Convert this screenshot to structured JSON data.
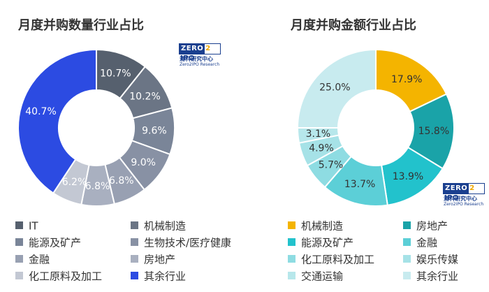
{
  "logo": {
    "zero": "ZERO",
    "two": "2",
    "ipo": "IPO",
    "cn": "清科研究中心",
    "en": "Zero2IPO Research"
  },
  "chart_data": [
    {
      "type": "pie",
      "title": "月度并购数量行业占比",
      "donut": true,
      "start_angle": "12 o'clock, clockwise",
      "legend_position": "bottom",
      "slices": [
        {
          "label": "IT",
          "value": 10.7,
          "value_label": "10.7%",
          "color": "#56606e"
        },
        {
          "label": "机械制造",
          "value": 10.2,
          "value_label": "10.2%",
          "color": "#6b7585"
        },
        {
          "label": "能源及矿产",
          "value": 9.6,
          "value_label": "9.6%",
          "color": "#7a8598"
        },
        {
          "label": "生物技术/医疗健康",
          "value": 9.0,
          "value_label": "9.0%",
          "color": "#8891a4"
        },
        {
          "label": "金融",
          "value": 6.8,
          "value_label": "6.8%",
          "color": "#98a0b2"
        },
        {
          "label": "房地产",
          "value": 6.8,
          "value_label": "6.8%",
          "color": "#a9b0c0"
        },
        {
          "label": "化工原料及加工",
          "value": 6.2,
          "value_label": "6.2%",
          "color": "#c3c8d3"
        },
        {
          "label": "其余行业",
          "value": 40.7,
          "value_label": "40.7%",
          "color": "#2c4be2"
        }
      ],
      "legend": [
        {
          "label": "IT",
          "color": "#56606e"
        },
        {
          "label": "机械制造",
          "color": "#6b7585"
        },
        {
          "label": "能源及矿产",
          "color": "#7a8598"
        },
        {
          "label": "生物技术/医疗健康",
          "color": "#8891a4"
        },
        {
          "label": "金融",
          "color": "#98a0b2"
        },
        {
          "label": "房地产",
          "color": "#a9b0c0"
        },
        {
          "label": "化工原料及加工",
          "color": "#c3c8d3"
        },
        {
          "label": "其余行业",
          "color": "#2c4be2"
        }
      ]
    },
    {
      "type": "pie",
      "title": "月度并购金额行业占比",
      "donut": true,
      "start_angle": "12 o'clock, clockwise",
      "legend_position": "bottom",
      "slices": [
        {
          "label": "机械制造",
          "value": 17.9,
          "value_label": "17.9%",
          "color": "#f4b400"
        },
        {
          "label": "房地产",
          "value": 15.8,
          "value_label": "15.8%",
          "color": "#1aa3a8"
        },
        {
          "label": "能源及矿产",
          "value": 13.9,
          "value_label": "13.9%",
          "color": "#22c2cc"
        },
        {
          "label": "金融",
          "value": 13.7,
          "value_label": "13.7%",
          "color": "#5ccfd7"
        },
        {
          "label": "化工原料及加工",
          "value": 5.7,
          "value_label": "5.7%",
          "color": "#8edce2"
        },
        {
          "label": "娱乐传媒",
          "value": 4.9,
          "value_label": "4.9%",
          "color": "#a6e2e7"
        },
        {
          "label": "交通运输",
          "value": 3.1,
          "value_label": "3.1%",
          "color": "#b7e7eb"
        },
        {
          "label": "其余行业",
          "value": 25.0,
          "value_label": "25.0%",
          "color": "#c8ebef"
        }
      ],
      "legend": [
        {
          "label": "机械制造",
          "color": "#f4b400"
        },
        {
          "label": "房地产",
          "color": "#1aa3a8"
        },
        {
          "label": "能源及矿产",
          "color": "#22c2cc"
        },
        {
          "label": "金融",
          "color": "#5ccfd7"
        },
        {
          "label": "化工原料及加工",
          "color": "#8edce2"
        },
        {
          "label": "娱乐传媒",
          "color": "#a6e2e7"
        },
        {
          "label": "交通运输",
          "color": "#b7e7eb"
        },
        {
          "label": "其余行业",
          "color": "#c8ebef"
        }
      ]
    }
  ]
}
